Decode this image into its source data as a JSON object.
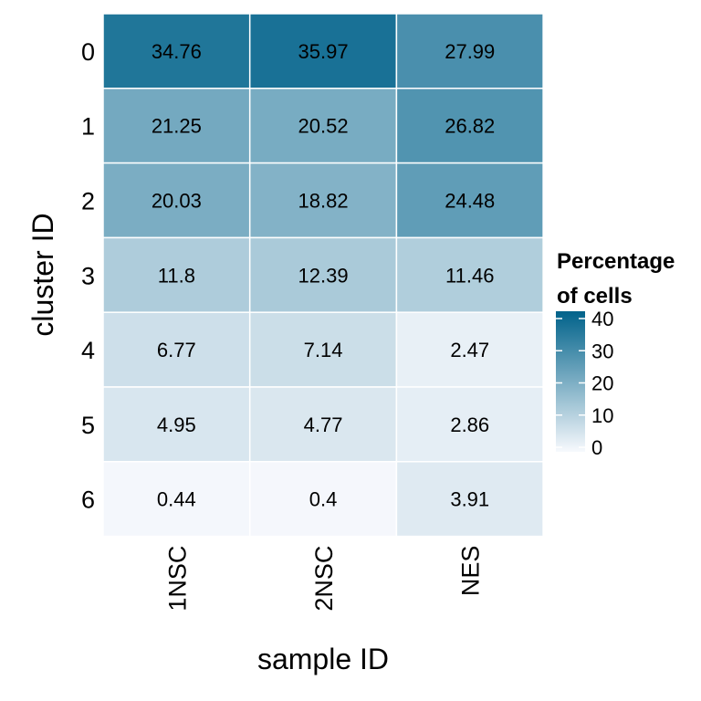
{
  "chart_data": {
    "type": "heatmap",
    "x_categories": [
      "1NSC",
      "2NSC",
      "NES"
    ],
    "y_categories": [
      "0",
      "1",
      "2",
      "3",
      "4",
      "5",
      "6"
    ],
    "values": [
      [
        34.76,
        35.97,
        27.99
      ],
      [
        21.25,
        20.52,
        26.82
      ],
      [
        20.03,
        18.82,
        24.48
      ],
      [
        11.8,
        12.39,
        11.46
      ],
      [
        6.77,
        7.14,
        2.47
      ],
      [
        4.95,
        4.77,
        2.86
      ],
      [
        0.44,
        0.4,
        3.91
      ]
    ],
    "xlabel": "sample ID",
    "ylabel": "cluster ID",
    "legend": {
      "title_line1": "Percentage",
      "title_line2": "of cells",
      "ticks": [
        0,
        10,
        20,
        30,
        40
      ],
      "range": [
        0,
        40
      ],
      "low_color": "#f7f9fd",
      "high_color": "#00628a"
    }
  }
}
